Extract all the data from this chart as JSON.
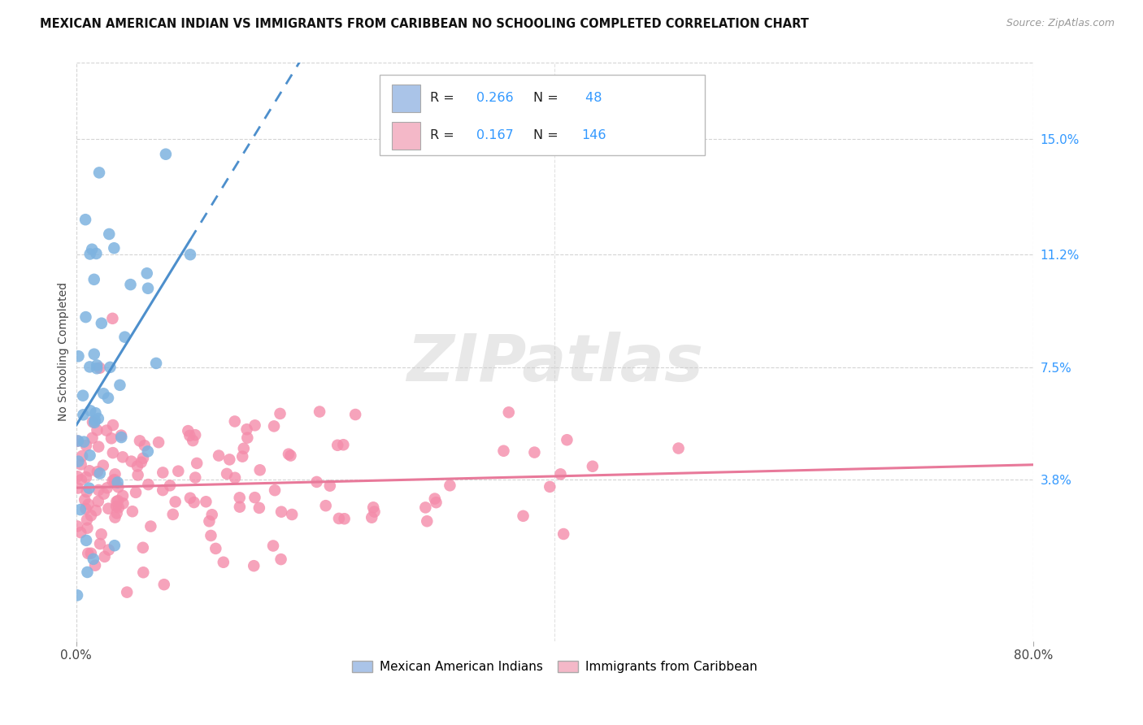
{
  "title": "MEXICAN AMERICAN INDIAN VS IMMIGRANTS FROM CARIBBEAN NO SCHOOLING COMPLETED CORRELATION CHART",
  "source": "Source: ZipAtlas.com",
  "ylabel": "No Schooling Completed",
  "ytick_labels": [
    "15.0%",
    "11.2%",
    "7.5%",
    "3.8%"
  ],
  "ytick_values": [
    0.15,
    0.112,
    0.075,
    0.038
  ],
  "xmin": 0.0,
  "xmax": 0.8,
  "ymin": -0.015,
  "ymax": 0.175,
  "watermark": "ZIPatlas",
  "blue_color": "#4d8fcc",
  "pink_color": "#e8799a",
  "blue_fill": "#aac4e8",
  "pink_fill": "#f4b8c8",
  "legend_R_color": "#3399ff",
  "blue_scatter": "#7eb3e0",
  "pink_scatter": "#f48caa",
  "series1_name": "Mexican American Indians",
  "series2_name": "Immigrants from Caribbean",
  "grid_color": "#d0d0d0",
  "bg_color": "#ffffff",
  "title_fontsize": 11,
  "axis_label_fontsize": 10,
  "tick_fontsize": 10
}
